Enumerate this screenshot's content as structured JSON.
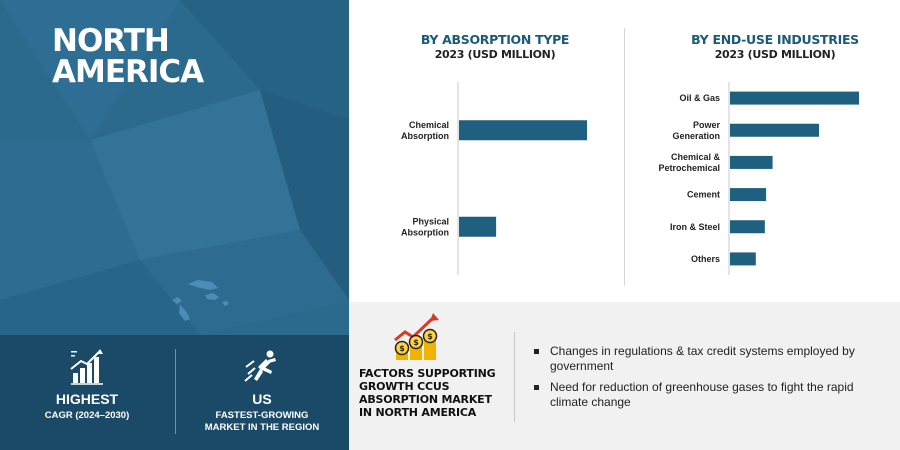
{
  "region": {
    "title": "NORTH\nAMERICA"
  },
  "stats": [
    {
      "value": "HIGHEST",
      "label": "CAGR (2024–2030)",
      "icon": "bar-growth-icon"
    },
    {
      "value": "US",
      "label": "FASTEST-GROWING\nMARKET IN THE REGION",
      "icon": "rocket-runner-icon"
    }
  ],
  "colors": {
    "bar": "#1f5f7f",
    "left_panel": "#2b6a8c",
    "band": "#1b4a68",
    "title": "#1b5a7a"
  },
  "chart_data": [
    {
      "type": "bar",
      "orientation": "horizontal",
      "title": "BY ABSORPTION TYPE",
      "subtitle": "2023 (USD MILLION)",
      "categories": [
        "Chemical\nAbsorption",
        "Physical\nAbsorption"
      ],
      "values": [
        100,
        29
      ],
      "xlim": [
        0,
        100
      ],
      "grid": false,
      "legend": "none"
    },
    {
      "type": "bar",
      "orientation": "horizontal",
      "title": "BY END-USE INDUSTRIES",
      "subtitle": "2023 (USD MILLION)",
      "categories": [
        "Oil & Gas",
        "Power\nGeneration",
        "Chemical &\nPetrochemical",
        "Cement",
        "Iron & Steel",
        "Others"
      ],
      "values": [
        100,
        69,
        33,
        28,
        27,
        20
      ],
      "xlim": [
        0,
        100
      ],
      "grid": false,
      "legend": "none"
    }
  ],
  "factors": {
    "title": "FACTORS SUPPORTING\nGROWTH CCUS\nABSORPTION MARKET\nIN NORTH AMERICA",
    "icon": "coins-growth-icon",
    "items": [
      "Changes in regulations & tax credit systems employed by government",
      "Need for reduction of greenhouse gases to fight the rapid climate change"
    ]
  }
}
